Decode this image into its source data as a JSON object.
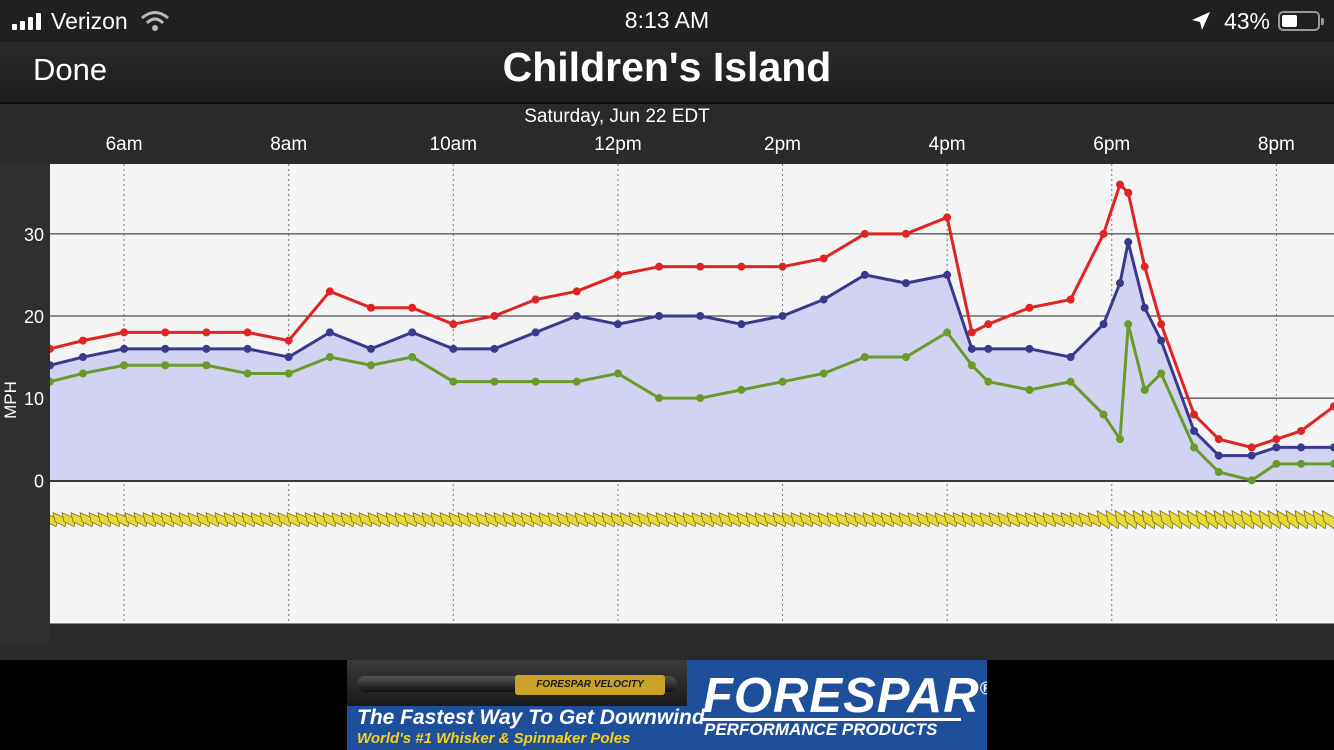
{
  "status_bar": {
    "carrier": "Verizon",
    "time": "8:13 AM",
    "battery_text": "43%",
    "battery_level": 0.43,
    "icons": [
      "signal-bars-icon",
      "wifi-icon",
      "location-arrow-icon",
      "battery-icon"
    ]
  },
  "nav": {
    "done_label": "Done",
    "title": "Children's Island"
  },
  "chart_data": {
    "type": "line",
    "date_label": "Saturday, Jun 22 EDT",
    "ylabel": "MPH",
    "xlabel": "",
    "x_ticks": [
      "6am",
      "8am",
      "10am",
      "12pm",
      "2pm",
      "4pm",
      "6pm",
      "8pm"
    ],
    "x_tick_hours": [
      6,
      8,
      10,
      12,
      14,
      16,
      18,
      20
    ],
    "x_range_hours": [
      5.1,
      20.7
    ],
    "y_ticks": [
      0,
      10,
      20,
      30
    ],
    "ylim": [
      -17.5,
      38.5
    ],
    "grid": true,
    "x_hours": [
      5.1,
      5.5,
      6.0,
      6.5,
      7.0,
      7.5,
      8.0,
      8.5,
      9.0,
      9.5,
      10.0,
      10.5,
      11.0,
      11.5,
      12.0,
      12.5,
      13.0,
      13.5,
      14.0,
      14.5,
      15.0,
      15.5,
      16.0,
      16.3,
      16.5,
      17.0,
      17.5,
      17.9,
      18.1,
      18.2,
      18.4,
      18.6,
      19.0,
      19.3,
      19.7,
      20.0,
      20.3,
      20.7
    ],
    "series": [
      {
        "color": "#e02424",
        "values": [
          16,
          17,
          18,
          18,
          18,
          18,
          17,
          23,
          21,
          21,
          19,
          20,
          22,
          23,
          25,
          26,
          26,
          26,
          26,
          27,
          30,
          30,
          32,
          18,
          19,
          21,
          22,
          30,
          36,
          35,
          26,
          19,
          8,
          5,
          4,
          5,
          6,
          9
        ]
      },
      {
        "color": "#3a3a8c",
        "values": [
          14,
          15,
          16,
          16,
          16,
          16,
          15,
          18,
          16,
          18,
          16,
          16,
          18,
          20,
          19,
          20,
          20,
          19,
          20,
          22,
          25,
          24,
          25,
          16,
          16,
          16,
          15,
          19,
          24,
          29,
          21,
          17,
          6,
          3,
          3,
          4,
          4,
          4
        ]
      },
      {
        "color": "#6a9a2a",
        "values": [
          12,
          13,
          14,
          14,
          14,
          13,
          13,
          15,
          14,
          15,
          12,
          12,
          12,
          12,
          13,
          10,
          10,
          11,
          12,
          13,
          15,
          15,
          18,
          14,
          12,
          11,
          12,
          8,
          5,
          19,
          11,
          13,
          4,
          1,
          0,
          2,
          2,
          2
        ]
      }
    ],
    "wind_direction_row": "yellow-wind-arrows"
  },
  "ad": {
    "tagline": "The Fastest Way To Get Downwind",
    "subline": "World's #1 Whisker & Spinnaker Poles",
    "brand": "FORESPAR",
    "brand_mark": "®",
    "brand_sub": "PERFORMANCE PRODUCTS",
    "product_label": "FORESPAR VELOCITY",
    "colors": {
      "background": "#1d4f9a",
      "accent": "#f5d21c"
    }
  }
}
